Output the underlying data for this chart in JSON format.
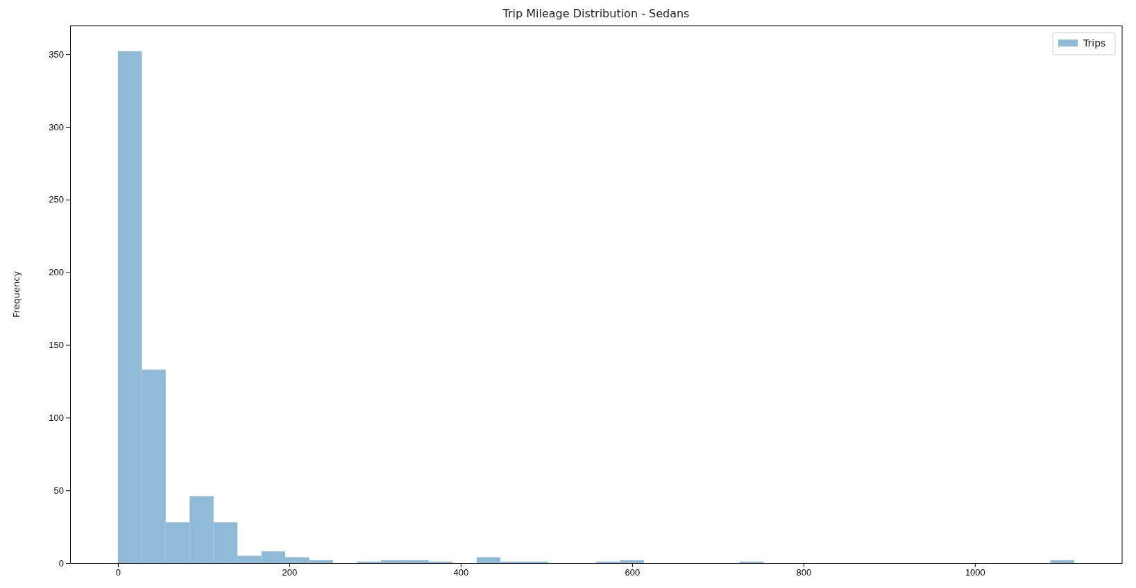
{
  "chart_data": {
    "type": "histogram",
    "title": "Trip Mileage Distribution - Sedans",
    "ylabel": "Frequency",
    "bins": [
      0,
      27.9,
      55.8,
      83.7,
      111.6,
      139.5,
      167.4,
      195.3,
      223.2,
      251.1,
      279,
      306.9,
      334.8,
      362.7,
      390.6,
      418.5,
      446.4,
      474.3,
      502.2,
      530.1,
      558,
      585.9,
      613.8,
      641.7,
      669.6,
      697.5,
      725.4,
      753.3,
      781.2,
      809.1,
      837,
      864.9,
      892.8,
      920.7,
      948.6,
      976.5,
      1004.4,
      1032.3,
      1060.2,
      1088.1,
      1116
    ],
    "series": [
      {
        "name": "Trips",
        "color": "#8fbbd9",
        "values": [
          352,
          133,
          28,
          46,
          28,
          5,
          8,
          4,
          2,
          0,
          1,
          2,
          2,
          1,
          0,
          4,
          1,
          1,
          0,
          0,
          1,
          2,
          0,
          0,
          0,
          0,
          1,
          0,
          0,
          0,
          0,
          0,
          0,
          0,
          0,
          0,
          0,
          0,
          0,
          2
        ]
      }
    ],
    "xlim": [
      -55.8,
      1171.8
    ],
    "xticks": [
      0,
      200,
      400,
      600,
      800,
      1000
    ],
    "ylim": [
      0,
      369.6
    ],
    "yticks": [
      0,
      50,
      100,
      150,
      200,
      250,
      300,
      350
    ],
    "grid": false,
    "legend": "top right"
  }
}
